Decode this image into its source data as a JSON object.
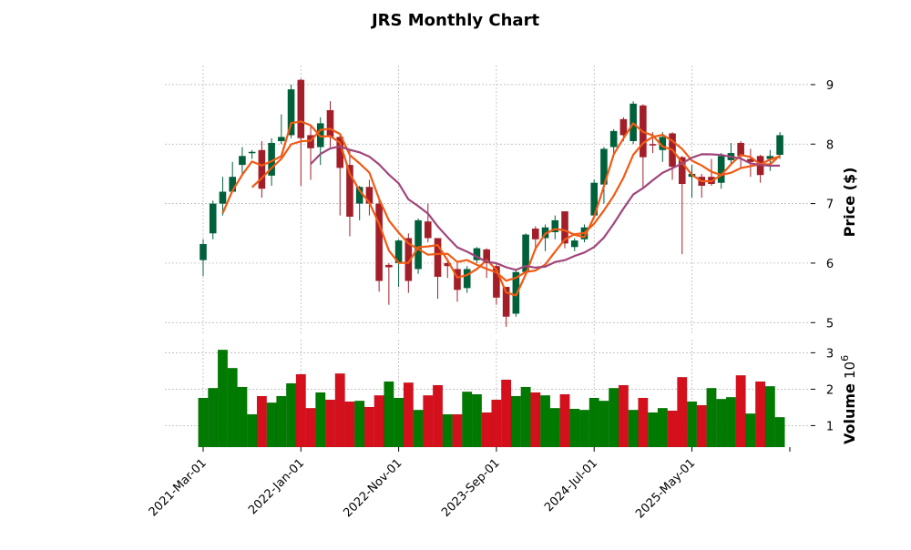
{
  "chart_data": {
    "type": "candlestick",
    "title": "JRS Monthly Chart",
    "ylabel": "Price ($)",
    "ylabel_volume": "Volume",
    "volume_exponent": "10",
    "volume_exponent_power": "6",
    "ylim": [
      4.79,
      9.32
    ],
    "volume_ylim": [
      0.41,
      3.36
    ],
    "price_ticks": [
      "5",
      "6",
      "7",
      "8",
      "9"
    ],
    "volume_ticks": [
      "1",
      "2",
      "3"
    ],
    "x_tick_labels": [
      {
        "index": 0,
        "label": "2021-Mar-01"
      },
      {
        "index": 10,
        "label": "2022-Jan-01"
      },
      {
        "index": 20,
        "label": "2022-Nov-01"
      },
      {
        "index": 30,
        "label": "2023-Sep-01"
      },
      {
        "index": 40,
        "label": "2024-Jul-01"
      },
      {
        "index": 50,
        "label": "2025-May-01"
      }
    ],
    "moving_averages": [
      {
        "window": 3,
        "color": "#f05a14"
      },
      {
        "window": 6,
        "color": "#f05a14"
      },
      {
        "window": 12,
        "color": "#a0457a"
      }
    ],
    "colors": {
      "up": "#00603b",
      "down": "#a21f29",
      "vol_up": "#007a00",
      "vol_down": "#d4101c"
    },
    "ohlc": [
      [
        6.05,
        6.4,
        5.78,
        6.32
      ],
      [
        6.5,
        7.05,
        6.4,
        7.0
      ],
      [
        7.0,
        7.45,
        6.8,
        7.2
      ],
      [
        7.2,
        7.7,
        7.2,
        7.45
      ],
      [
        7.65,
        7.95,
        7.5,
        7.8
      ],
      [
        7.85,
        7.9,
        7.75,
        7.87
      ],
      [
        7.9,
        8.05,
        7.1,
        7.25
      ],
      [
        7.47,
        8.1,
        7.3,
        8.02
      ],
      [
        8.05,
        8.5,
        8.0,
        8.12
      ],
      [
        8.15,
        9.0,
        8.1,
        8.92
      ],
      [
        9.08,
        9.1,
        7.3,
        8.1
      ],
      [
        8.15,
        8.3,
        7.4,
        7.93
      ],
      [
        7.95,
        8.45,
        7.65,
        8.35
      ],
      [
        8.57,
        8.72,
        7.95,
        8.12
      ],
      [
        8.12,
        8.15,
        6.8,
        7.6
      ],
      [
        7.65,
        7.9,
        6.45,
        6.78
      ],
      [
        7.0,
        7.3,
        6.72,
        7.28
      ],
      [
        7.28,
        7.4,
        6.8,
        7.0
      ],
      [
        7.0,
        7.1,
        5.52,
        5.7
      ],
      [
        5.97,
        6.0,
        5.3,
        5.93
      ],
      [
        6.0,
        6.4,
        5.6,
        6.38
      ],
      [
        6.42,
        6.5,
        5.5,
        5.7
      ],
      [
        5.9,
        6.75,
        5.82,
        6.72
      ],
      [
        6.7,
        7.0,
        6.35,
        6.42
      ],
      [
        6.42,
        6.42,
        5.4,
        5.77
      ],
      [
        6.0,
        6.05,
        5.75,
        5.95
      ],
      [
        5.9,
        6.0,
        5.35,
        5.55
      ],
      [
        5.58,
        5.95,
        5.5,
        5.9
      ],
      [
        6.05,
        6.27,
        6.0,
        6.25
      ],
      [
        6.23,
        6.25,
        5.75,
        6.0
      ],
      [
        5.95,
        6.0,
        5.3,
        5.42
      ],
      [
        5.6,
        5.6,
        4.93,
        5.1
      ],
      [
        5.15,
        5.9,
        5.1,
        5.85
      ],
      [
        5.85,
        6.5,
        5.8,
        6.48
      ],
      [
        6.58,
        6.62,
        6.2,
        6.4
      ],
      [
        6.42,
        6.65,
        6.2,
        6.6
      ],
      [
        6.52,
        6.8,
        6.4,
        6.72
      ],
      [
        6.87,
        6.87,
        6.25,
        6.33
      ],
      [
        6.27,
        6.42,
        6.2,
        6.38
      ],
      [
        6.4,
        6.65,
        6.35,
        6.6
      ],
      [
        6.8,
        7.4,
        6.75,
        7.35
      ],
      [
        7.32,
        7.95,
        7.0,
        7.92
      ],
      [
        7.95,
        8.25,
        7.85,
        8.22
      ],
      [
        8.42,
        8.45,
        8.05,
        8.15
      ],
      [
        8.05,
        8.72,
        8.0,
        8.68
      ],
      [
        8.65,
        8.67,
        7.25,
        7.78
      ],
      [
        8.0,
        8.2,
        7.85,
        7.98
      ],
      [
        7.9,
        8.2,
        7.7,
        8.12
      ],
      [
        8.18,
        8.2,
        7.4,
        7.62
      ],
      [
        7.78,
        7.8,
        6.15,
        7.33
      ],
      [
        7.45,
        7.65,
        7.1,
        7.5
      ],
      [
        7.45,
        7.5,
        7.1,
        7.3
      ],
      [
        7.45,
        7.75,
        7.3,
        7.33
      ],
      [
        7.35,
        7.85,
        7.25,
        7.8
      ],
      [
        7.73,
        8.02,
        7.65,
        7.85
      ],
      [
        8.02,
        8.05,
        7.6,
        7.8
      ],
      [
        7.75,
        7.92,
        7.45,
        7.7
      ],
      [
        7.8,
        7.82,
        7.35,
        7.48
      ],
      [
        7.75,
        7.9,
        7.55,
        7.8
      ],
      [
        7.82,
        8.2,
        7.75,
        8.15
      ]
    ],
    "volume": [
      1.76,
      2.03,
      3.08,
      2.58,
      2.06,
      1.31,
      1.81,
      1.63,
      1.81,
      2.16,
      2.41,
      1.48,
      1.91,
      1.71,
      2.43,
      1.66,
      1.68,
      1.51,
      1.83,
      2.21,
      1.76,
      2.18,
      1.43,
      1.83,
      2.11,
      1.31,
      1.31,
      1.93,
      1.86,
      1.36,
      1.71,
      2.26,
      1.81,
      2.06,
      1.91,
      1.83,
      1.48,
      1.86,
      1.46,
      1.43,
      1.76,
      1.68,
      2.03,
      2.11,
      1.43,
      1.76,
      1.36,
      1.48,
      1.41,
      2.33,
      1.66,
      1.56,
      2.03,
      1.73,
      1.78,
      2.38,
      1.33,
      2.21,
      2.08,
      1.23
    ],
    "volume_up": [
      1,
      1,
      1,
      1,
      1,
      1,
      0,
      1,
      1,
      1,
      0,
      0,
      1,
      0,
      0,
      0,
      1,
      0,
      0,
      1,
      1,
      0,
      1,
      0,
      0,
      1,
      0,
      1,
      1,
      0,
      0,
      0,
      1,
      1,
      0,
      1,
      1,
      0,
      1,
      1,
      1,
      1,
      1,
      0,
      1,
      0,
      1,
      1,
      0,
      0,
      1,
      0,
      1,
      1,
      1,
      0,
      1,
      0,
      1,
      1
    ]
  }
}
